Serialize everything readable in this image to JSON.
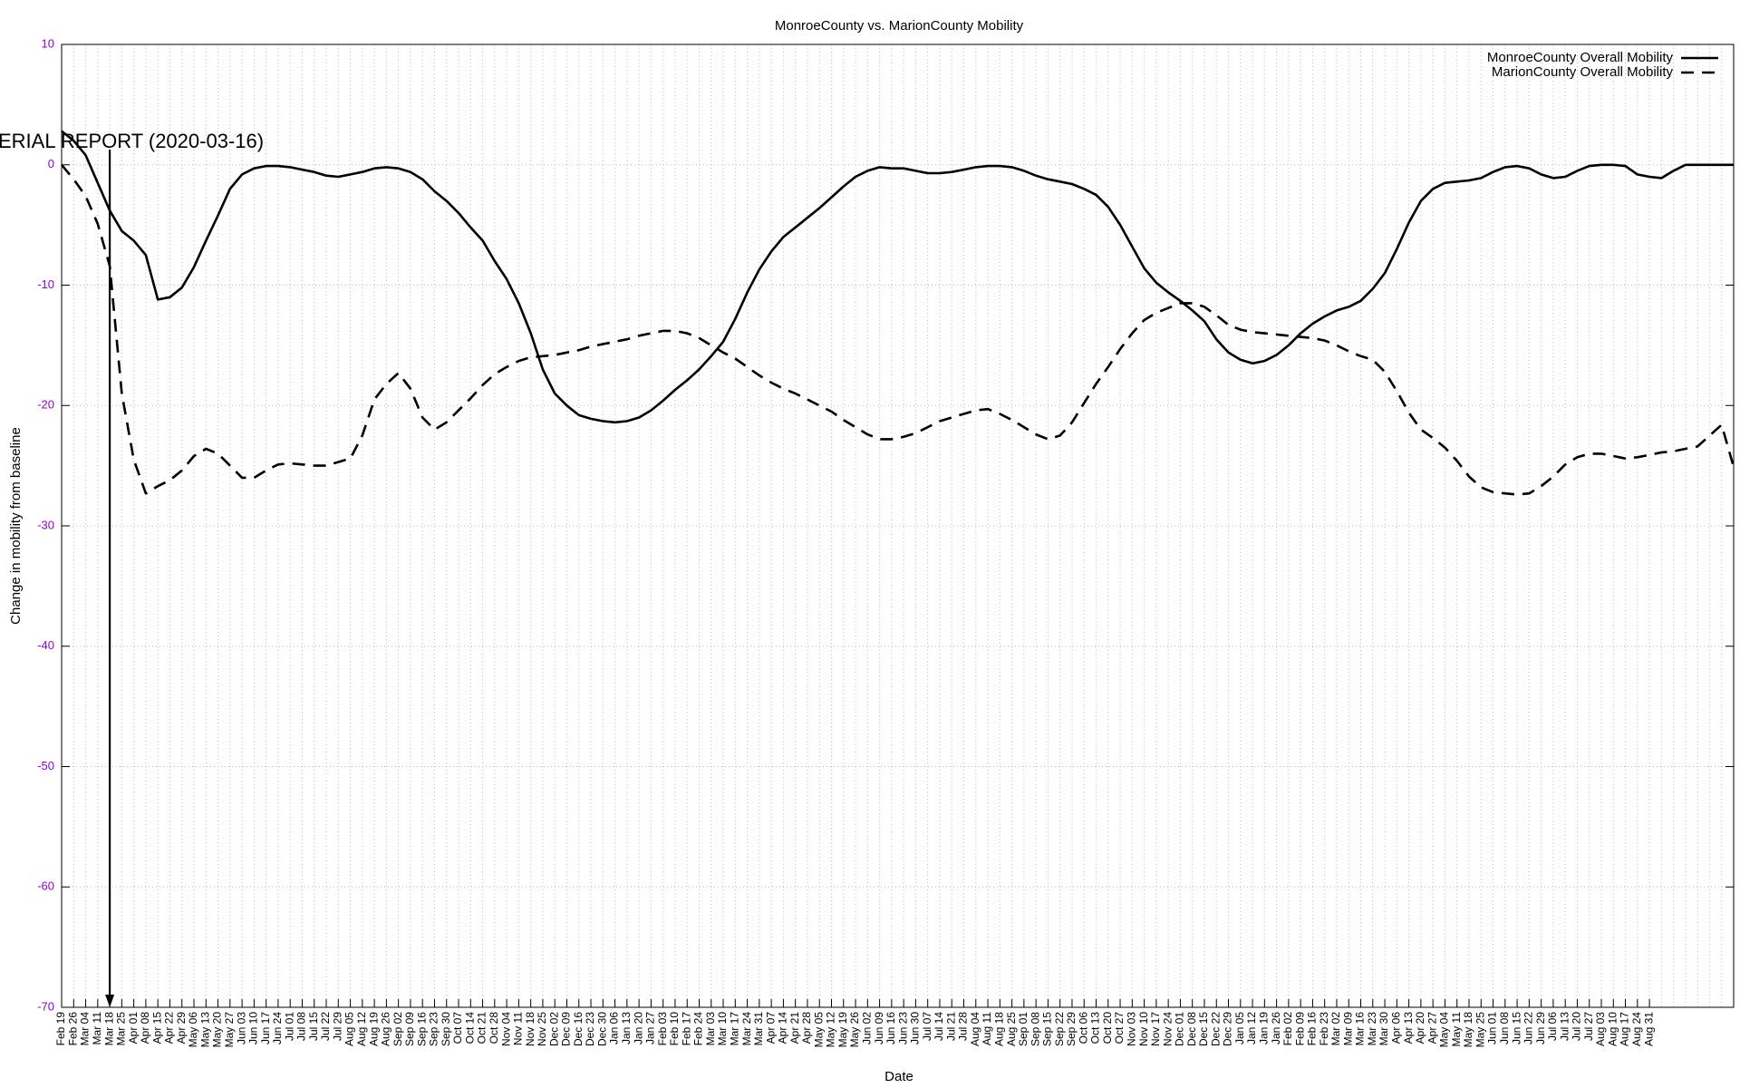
{
  "chart_data": {
    "type": "line",
    "title": "MonroeCounty vs. MarionCounty Mobility",
    "x_label": "Date",
    "y_label": "Change in mobility from baseline",
    "annotation": "ERIAL REPORT (2020-03-16)",
    "categories": [
      "Feb 19",
      "Feb 26",
      "Mar 04",
      "Mar 11",
      "Mar 18",
      "Mar 25",
      "Apr 01",
      "Apr 08",
      "Apr 15",
      "Apr 22",
      "Apr 29",
      "May 06",
      "May 13",
      "May 20",
      "May 27",
      "Jun 03",
      "Jun 10",
      "Jun 17",
      "Jun 24",
      "Jul 01",
      "Jul 08",
      "Jul 15",
      "Jul 22",
      "Jul 29",
      "Aug 05",
      "Aug 12",
      "Aug 19",
      "Aug 26",
      "Sep 02",
      "Sep 09",
      "Sep 16",
      "Sep 23",
      "Sep 30",
      "Oct 07",
      "Oct 14",
      "Oct 21",
      "Oct 28",
      "Nov 04",
      "Nov 11",
      "Nov 18",
      "Nov 25",
      "Dec 02",
      "Dec 09",
      "Dec 16",
      "Dec 23",
      "Dec 30",
      "Jan 06",
      "Jan 13",
      "Jan 20",
      "Jan 27",
      "Feb 03",
      "Feb 10",
      "Feb 17",
      "Feb 24",
      "Mar 03",
      "Mar 10",
      "Mar 17",
      "Mar 24",
      "Mar 31",
      "Apr 07",
      "Apr 14",
      "Apr 21",
      "Apr 28",
      "May 05",
      "May 12",
      "May 19",
      "May 26",
      "Jun 02",
      "Jun 09",
      "Jun 16",
      "Jun 23",
      "Jun 30",
      "Jul 07",
      "Jul 14",
      "Jul 21",
      "Jul 28",
      "Aug 04",
      "Aug 11",
      "Aug 18",
      "Aug 25",
      "Sep 01",
      "Sep 08",
      "Sep 15",
      "Sep 22",
      "Sep 29",
      "Oct 06",
      "Oct 13",
      "Oct 20",
      "Oct 27",
      "Nov 03",
      "Nov 10",
      "Nov 17",
      "Nov 24",
      "Dec 01",
      "Dec 08",
      "Dec 15",
      "Dec 22",
      "Dec 29",
      "Jan 05",
      "Jan 12",
      "Jan 19",
      "Jan 26",
      "Feb 02",
      "Feb 09",
      "Feb 16",
      "Feb 23",
      "Mar 02",
      "Mar 09",
      "Mar 16",
      "Mar 23",
      "Mar 30",
      "Apr 06",
      "Apr 13",
      "Apr 20",
      "Apr 27",
      "May 04",
      "May 11",
      "May 18",
      "May 25",
      "Jun 01",
      "Jun 08",
      "Jun 15",
      "Jun 22",
      "Jun 29",
      "Jul 06",
      "Jul 13",
      "Jul 20",
      "Jul 27",
      "Aug 03",
      "Aug 10",
      "Aug 17",
      "Aug 24",
      "Aug 31",
      null,
      null,
      null,
      null,
      null,
      null,
      null
    ],
    "series": [
      {
        "name": "MonroeCounty Overall Mobility",
        "color": "#000000",
        "dash": false,
        "values": [
          2.8,
          2.0,
          0.8,
          -1.5,
          -3.8,
          -5.5,
          -6.3,
          -7.5,
          -11.2,
          -11.0,
          -10.2,
          -8.5,
          -6.3,
          -4.2,
          -2.0,
          -0.8,
          -0.3,
          -0.1,
          -0.1,
          -0.2,
          -0.4,
          -0.6,
          -0.9,
          -1.0,
          -0.8,
          -0.6,
          -0.3,
          -0.2,
          -0.3,
          -0.6,
          -1.2,
          -2.2,
          -3.0,
          -4.0,
          -5.2,
          -6.3,
          -8.0,
          -9.5,
          -11.5,
          -14.0,
          -17.0,
          -19.0,
          -20.0,
          -20.8,
          -21.1,
          -21.3,
          -21.4,
          -21.3,
          -21.0,
          -20.4,
          -19.6,
          -18.7,
          -17.9,
          -17.0,
          -15.9,
          -14.7,
          -12.8,
          -10.6,
          -8.7,
          -7.2,
          -6.0,
          -5.2,
          -4.4,
          -3.6,
          -2.7,
          -1.8,
          -1.0,
          -0.5,
          -0.2,
          -0.3,
          -0.3,
          -0.5,
          -0.7,
          -0.7,
          -0.6,
          -0.4,
          -0.2,
          -0.1,
          -0.1,
          -0.2,
          -0.5,
          -0.9,
          -1.2,
          -1.4,
          -1.6,
          -2.0,
          -2.5,
          -3.5,
          -5.0,
          -6.8,
          -8.6,
          -9.8,
          -10.6,
          -11.3,
          -12.1,
          -13.0,
          -14.5,
          -15.6,
          -16.2,
          -16.5,
          -16.3,
          -15.8,
          -15.0,
          -14.0,
          -13.2,
          -12.6,
          -12.1,
          -11.8,
          -11.3,
          -10.3,
          -9.0,
          -7.0,
          -4.8,
          -3.0,
          -2.0,
          -1.5,
          -1.4,
          -1.3,
          -1.1,
          -0.6,
          -0.2,
          -0.1,
          -0.3,
          -0.8,
          -1.1,
          -1.0,
          -0.5,
          -0.1,
          0,
          0,
          -0.1,
          -0.8,
          -1.0,
          -1.1,
          -0.5,
          0,
          0,
          0,
          0,
          0
        ]
      },
      {
        "name": "MarionCounty Overall Mobility",
        "color": "#000000",
        "dash": true,
        "values": [
          0,
          -1.2,
          -2.6,
          -4.9,
          -8.4,
          -19,
          -24.5,
          -27.3,
          -26.7,
          -26.2,
          -25.4,
          -24.2,
          -23.6,
          -24.0,
          -25.0,
          -26.0,
          -26.0,
          -25.4,
          -24.9,
          -24.8,
          -24.9,
          -25.0,
          -25.0,
          -24.7,
          -24.4,
          -22.5,
          -19.5,
          -18.2,
          -17.3,
          -18.6,
          -21.0,
          -22.0,
          -21.4,
          -20.4,
          -19.4,
          -18.3,
          -17.4,
          -16.8,
          -16.3,
          -16.0,
          -15.9,
          -15.8,
          -15.6,
          -15.4,
          -15.1,
          -14.9,
          -14.7,
          -14.5,
          -14.2,
          -14.0,
          -13.8,
          -13.8,
          -14.0,
          -14.4,
          -15.0,
          -15.6,
          -16.1,
          -16.8,
          -17.5,
          -18.1,
          -18.6,
          -19.0,
          -19.5,
          -20.0,
          -20.5,
          -21.2,
          -21.8,
          -22.4,
          -22.8,
          -22.8,
          -22.6,
          -22.3,
          -21.8,
          -21.3,
          -21.0,
          -20.7,
          -20.4,
          -20.3,
          -20.7,
          -21.2,
          -21.8,
          -22.4,
          -22.8,
          -22.5,
          -21.4,
          -19.8,
          -18.2,
          -16.8,
          -15.3,
          -14.0,
          -12.9,
          -12.3,
          -11.9,
          -11.5,
          -11.5,
          -11.8,
          -12.5,
          -13.3,
          -13.7,
          -13.9,
          -14.0,
          -14.1,
          -14.2,
          -14.3,
          -14.4,
          -14.6,
          -15.0,
          -15.5,
          -15.9,
          -16.2,
          -17.2,
          -18.8,
          -20.6,
          -22.0,
          -22.7,
          -23.5,
          -24.6,
          -25.9,
          -26.8,
          -27.2,
          -27.3,
          -27.4,
          -27.3,
          -26.7,
          -25.9,
          -24.9,
          -24.3,
          -24.0,
          -24.0,
          -24.2,
          -24.4,
          -24.3,
          -24.1,
          -23.9,
          -23.8,
          -23.6,
          -23.4,
          -22.5,
          -21.6,
          -25.1
        ]
      }
    ],
    "ylim": [
      -70,
      10
    ],
    "yticks": [
      -70,
      -60,
      -50,
      -40,
      -30,
      -20,
      -10,
      0,
      10
    ],
    "grid": true,
    "legend": "top-right"
  }
}
